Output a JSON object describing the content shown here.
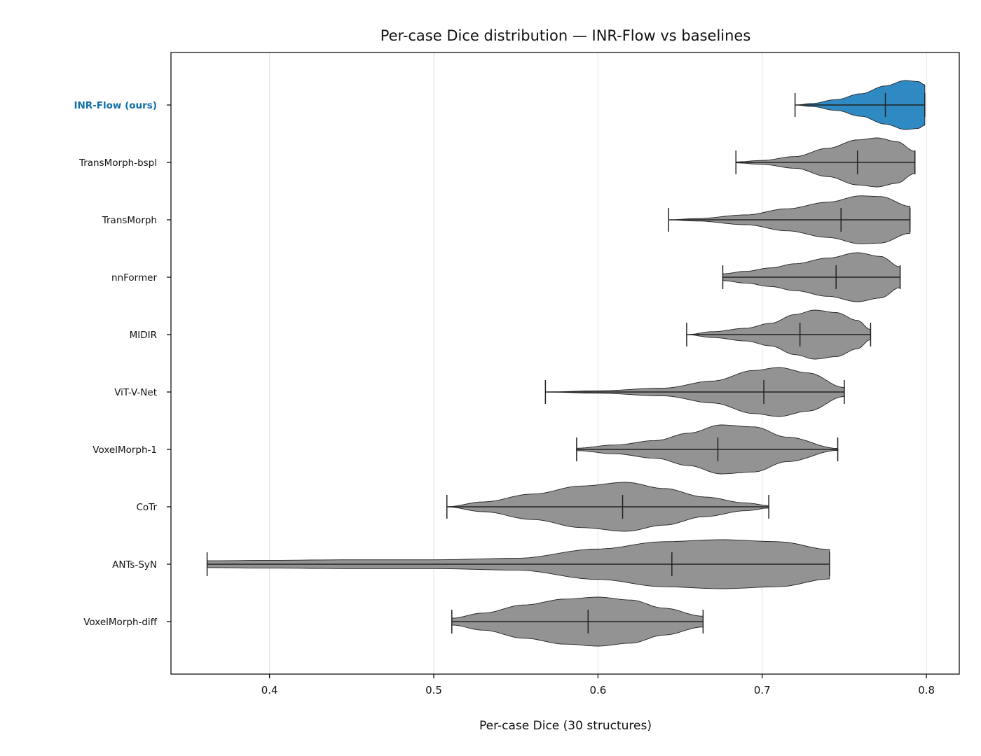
{
  "chart_data": {
    "type": "violin",
    "title": "Per-case Dice distribution — INR-Flow vs baselines",
    "xlabel": "Per-case Dice (30 structures)",
    "ylabel": "",
    "xlim": [
      0.34,
      0.82
    ],
    "xticks": [
      0.4,
      0.5,
      0.6,
      0.7,
      0.8
    ],
    "xtick_labels": [
      "0.4",
      "0.5",
      "0.6",
      "0.7",
      "0.8"
    ],
    "grid": "vertical",
    "orientation": "horizontal",
    "colors": {
      "highlight": "#2f8ac4",
      "baseline": "#939393",
      "highlight_label": "#0e6fa8"
    },
    "series": [
      {
        "name": "INR-Flow (ours)",
        "highlight": true,
        "min": 0.72,
        "max": 0.799,
        "median": 0.775,
        "peak": 0.788,
        "density": [
          [
            0.72,
            0.0
          ],
          [
            0.73,
            0.06
          ],
          [
            0.745,
            0.22
          ],
          [
            0.76,
            0.46
          ],
          [
            0.775,
            0.78
          ],
          [
            0.787,
            1.0
          ],
          [
            0.795,
            0.96
          ],
          [
            0.799,
            0.82
          ]
        ]
      },
      {
        "name": "TransMorph-bspl",
        "highlight": false,
        "min": 0.684,
        "max": 0.793,
        "median": 0.758,
        "peak": 0.768,
        "density": [
          [
            0.684,
            0.02
          ],
          [
            0.7,
            0.08
          ],
          [
            0.72,
            0.24
          ],
          [
            0.74,
            0.58
          ],
          [
            0.758,
            0.92
          ],
          [
            0.77,
            1.0
          ],
          [
            0.782,
            0.85
          ],
          [
            0.793,
            0.45
          ]
        ]
      },
      {
        "name": "TransMorph",
        "highlight": false,
        "min": 0.643,
        "max": 0.79,
        "median": 0.748,
        "peak": 0.76,
        "density": [
          [
            0.643,
            0.0
          ],
          [
            0.66,
            0.05
          ],
          [
            0.69,
            0.2
          ],
          [
            0.715,
            0.45
          ],
          [
            0.74,
            0.72
          ],
          [
            0.76,
            0.98
          ],
          [
            0.772,
            0.95
          ],
          [
            0.79,
            0.55
          ]
        ]
      },
      {
        "name": "nnFormer",
        "highlight": false,
        "min": 0.676,
        "max": 0.784,
        "median": 0.745,
        "peak": 0.758,
        "density": [
          [
            0.676,
            0.14
          ],
          [
            0.69,
            0.24
          ],
          [
            0.705,
            0.38
          ],
          [
            0.72,
            0.55
          ],
          [
            0.74,
            0.78
          ],
          [
            0.758,
            1.0
          ],
          [
            0.772,
            0.85
          ],
          [
            0.784,
            0.42
          ]
        ]
      },
      {
        "name": "MIDIR",
        "highlight": false,
        "min": 0.654,
        "max": 0.766,
        "median": 0.723,
        "peak": 0.732,
        "density": [
          [
            0.654,
            0.0
          ],
          [
            0.67,
            0.12
          ],
          [
            0.69,
            0.26
          ],
          [
            0.705,
            0.46
          ],
          [
            0.72,
            0.82
          ],
          [
            0.732,
            1.0
          ],
          [
            0.745,
            0.9
          ],
          [
            0.758,
            0.58
          ],
          [
            0.766,
            0.2
          ]
        ]
      },
      {
        "name": "ViT-V-Net",
        "highlight": false,
        "min": 0.568,
        "max": 0.75,
        "median": 0.701,
        "peak": 0.71,
        "density": [
          [
            0.568,
            0.0
          ],
          [
            0.6,
            0.05
          ],
          [
            0.64,
            0.16
          ],
          [
            0.67,
            0.45
          ],
          [
            0.695,
            0.88
          ],
          [
            0.71,
            1.0
          ],
          [
            0.728,
            0.78
          ],
          [
            0.75,
            0.18
          ]
        ]
      },
      {
        "name": "VoxelMorph-1",
        "highlight": false,
        "min": 0.587,
        "max": 0.746,
        "median": 0.673,
        "peak": 0.675,
        "density": [
          [
            0.587,
            0.05
          ],
          [
            0.61,
            0.18
          ],
          [
            0.635,
            0.36
          ],
          [
            0.655,
            0.66
          ],
          [
            0.675,
            1.0
          ],
          [
            0.695,
            0.92
          ],
          [
            0.715,
            0.5
          ],
          [
            0.746,
            0.04
          ]
        ]
      },
      {
        "name": "CoTr",
        "highlight": false,
        "min": 0.508,
        "max": 0.704,
        "median": 0.615,
        "peak": 0.617,
        "density": [
          [
            0.508,
            0.0
          ],
          [
            0.53,
            0.2
          ],
          [
            0.56,
            0.52
          ],
          [
            0.59,
            0.85
          ],
          [
            0.617,
            1.0
          ],
          [
            0.64,
            0.75
          ],
          [
            0.665,
            0.4
          ],
          [
            0.69,
            0.16
          ],
          [
            0.704,
            0.05
          ]
        ]
      },
      {
        "name": "ANTs-SyN",
        "highlight": false,
        "min": 0.362,
        "max": 0.741,
        "median": 0.645,
        "peak": 0.675,
        "density": [
          [
            0.362,
            0.14
          ],
          [
            0.4,
            0.16
          ],
          [
            0.45,
            0.18
          ],
          [
            0.5,
            0.18
          ],
          [
            0.55,
            0.24
          ],
          [
            0.6,
            0.62
          ],
          [
            0.64,
            0.92
          ],
          [
            0.675,
            1.0
          ],
          [
            0.71,
            0.92
          ],
          [
            0.741,
            0.6
          ]
        ]
      },
      {
        "name": "VoxelMorph-diff",
        "highlight": false,
        "min": 0.511,
        "max": 0.664,
        "median": 0.594,
        "peak": 0.6,
        "density": [
          [
            0.511,
            0.14
          ],
          [
            0.53,
            0.35
          ],
          [
            0.555,
            0.68
          ],
          [
            0.58,
            0.92
          ],
          [
            0.6,
            1.0
          ],
          [
            0.62,
            0.88
          ],
          [
            0.64,
            0.55
          ],
          [
            0.664,
            0.22
          ]
        ]
      }
    ]
  }
}
